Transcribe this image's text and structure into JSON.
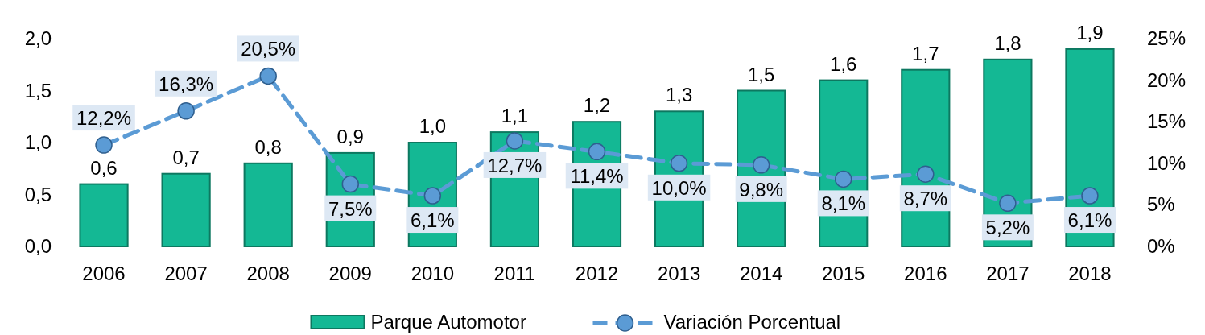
{
  "chart_data": {
    "type": "bar",
    "categories": [
      "2006",
      "2007",
      "2008",
      "2009",
      "2010",
      "2011",
      "2012",
      "2013",
      "2014",
      "2015",
      "2016",
      "2017",
      "2018"
    ],
    "series": [
      {
        "name": "Parque Automotor",
        "color": "#14b894",
        "values": [
          0.6,
          0.7,
          0.8,
          0.9,
          1.0,
          1.1,
          1.2,
          1.3,
          1.5,
          1.6,
          1.7,
          1.8,
          1.9
        ],
        "value_labels": [
          "0,6",
          "0,7",
          "0,8",
          "0,9",
          "1,0",
          "1,1",
          "1,2",
          "1,3",
          "1,5",
          "1,6",
          "1,7",
          "1,8",
          "1,9"
        ]
      },
      {
        "name": "Variación Porcentual",
        "type": "line",
        "axis": "y2",
        "color": "#5b9bd5",
        "line_style": "dashed",
        "marker": "circle",
        "values": [
          12.2,
          16.3,
          20.5,
          7.5,
          6.1,
          12.7,
          11.4,
          10.0,
          9.8,
          8.1,
          8.7,
          5.2,
          6.1
        ],
        "value_labels": [
          "12,2%",
          "16,3%",
          "20,5%",
          "7,5%",
          "6,1%",
          "12,7%",
          "11,4%",
          "10,0%",
          "9,8%",
          "8,1%",
          "8,7%",
          "5,2%",
          "6,1%"
        ]
      }
    ],
    "ylim": [
      0,
      2
    ],
    "yticks": [
      {
        "value": 0,
        "label": "0,0"
      },
      {
        "value": 0.5,
        "label": "0,5"
      },
      {
        "value": 1,
        "label": "1,0"
      },
      {
        "value": 1.5,
        "label": "1,5"
      },
      {
        "value": 2,
        "label": "2,0"
      }
    ],
    "y2lim": [
      0,
      25
    ],
    "y2ticks": [
      {
        "value": 0,
        "label": "0%"
      },
      {
        "value": 5,
        "label": "5%"
      },
      {
        "value": 10,
        "label": "10%"
      },
      {
        "value": 15,
        "label": "15%"
      },
      {
        "value": 20,
        "label": "20%"
      },
      {
        "value": 25,
        "label": "25%"
      }
    ],
    "legend": "bottom",
    "grid": false
  }
}
